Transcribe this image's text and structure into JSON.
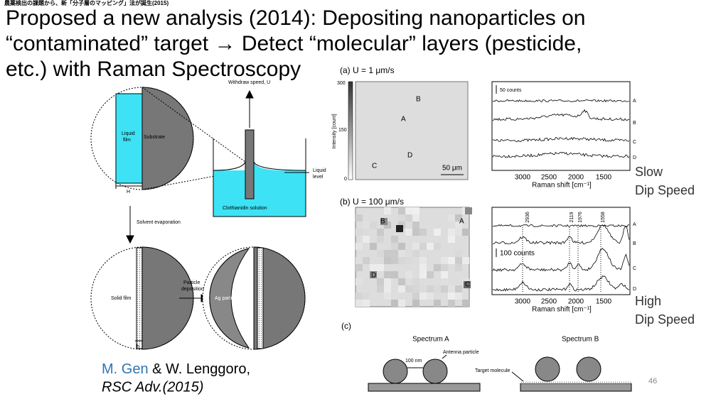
{
  "header": {
    "note": "農薬検出の課題から、新「分子層のマッピング」法が誕生(2015)",
    "title_lines": [
      "Proposed a new analysis (2014): Depositing nanoparticles on",
      "“contaminated” target → Detect “molecular” layers (pesticide,",
      "etc.) with Raman Spectroscopy"
    ]
  },
  "diagram": {
    "withdraw": "Withdraw speed, U",
    "liquid_film": [
      "Liquid",
      "film"
    ],
    "substrate": "Substrate",
    "liquid_level": [
      "Liquid",
      "level"
    ],
    "solution": "Clothianidin solution",
    "H": "H",
    "evaporation": "Solvent evaporation",
    "solid_film": "Solid film",
    "deposition": [
      "Particle",
      "deposition"
    ],
    "ag": "Ag particle",
    "h": "h"
  },
  "citation": {
    "author_link": "M. Gen",
    "rest": " & W. Lenggoro,",
    "journal": "RSC Adv.(2015)"
  },
  "panel_a": {
    "label": "(a) U = 1 μm/s",
    "colorbar": [
      "300",
      "150",
      "0"
    ],
    "colorbar_title": "Intensity [count]",
    "points": [
      "A",
      "B",
      "C",
      "D"
    ],
    "scale": "50 μm",
    "counts": "50 counts",
    "traces": [
      "A",
      "B",
      "C",
      "D"
    ],
    "ticks": [
      "3000",
      "2500",
      "2000",
      "1500"
    ],
    "axis": "Raman shift [cm⁻¹]",
    "speed": [
      "Slow",
      "Dip Speed"
    ]
  },
  "panel_b": {
    "label": "(b) U = 100 μm/s",
    "points": [
      "A",
      "B",
      "C",
      "D"
    ],
    "peaks": [
      "2936",
      "2119",
      "1976",
      "1558"
    ],
    "counts": "100 counts",
    "traces": [
      "A",
      "B",
      "C",
      "D"
    ],
    "ticks": [
      "3000",
      "2500",
      "2000",
      "1500"
    ],
    "axis": "Raman shift [cm⁻¹]",
    "speed": [
      "High",
      "Dip Speed"
    ]
  },
  "panel_c": {
    "label": "(c)",
    "spec_a": "Spectrum A",
    "spec_b": "Spectrum B",
    "distance": "100 nm",
    "antenna": "Antenna particle",
    "target": "Target molecule"
  },
  "page_number": "46"
}
